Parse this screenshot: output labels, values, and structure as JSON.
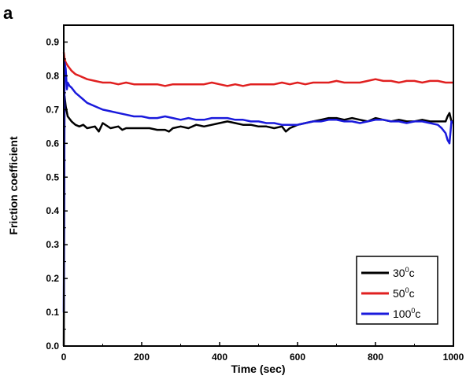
{
  "panel_label": "a",
  "chart_data": {
    "type": "line",
    "xlabel": "Time (sec)",
    "ylabel": "Friction coefficient",
    "xlim": [
      0,
      1000
    ],
    "ylim": [
      0.0,
      0.95
    ],
    "xticks": [
      "0",
      "200",
      "400",
      "600",
      "800",
      "1000"
    ],
    "xtick_values": [
      0,
      200,
      400,
      600,
      800,
      1000
    ],
    "yticks": [
      "0.0",
      "0.1",
      "0.2",
      "0.3",
      "0.4",
      "0.5",
      "0.6",
      "0.7",
      "0.8",
      "0.9"
    ],
    "ytick_values": [
      0.0,
      0.1,
      0.2,
      0.3,
      0.4,
      0.5,
      0.6,
      0.7,
      0.8,
      0.9
    ],
    "grid": false,
    "legend_position": "bottom-right",
    "series": [
      {
        "name": "30",
        "name_sup": "0",
        "name_suffix": "c",
        "color": "#000000",
        "x": [
          0,
          2,
          5,
          10,
          20,
          30,
          40,
          50,
          60,
          80,
          90,
          100,
          120,
          140,
          150,
          160,
          180,
          200,
          220,
          240,
          260,
          270,
          280,
          300,
          320,
          340,
          360,
          380,
          400,
          420,
          440,
          460,
          480,
          500,
          520,
          540,
          560,
          570,
          580,
          590,
          600,
          620,
          640,
          660,
          680,
          700,
          720,
          740,
          760,
          780,
          800,
          820,
          840,
          860,
          880,
          900,
          920,
          940,
          960,
          980,
          985,
          990,
          995,
          1000
        ],
        "y": [
          0.0,
          0.74,
          0.71,
          0.68,
          0.665,
          0.655,
          0.65,
          0.655,
          0.645,
          0.65,
          0.635,
          0.66,
          0.645,
          0.65,
          0.64,
          0.645,
          0.645,
          0.645,
          0.645,
          0.64,
          0.64,
          0.635,
          0.645,
          0.65,
          0.645,
          0.655,
          0.65,
          0.655,
          0.66,
          0.665,
          0.66,
          0.655,
          0.655,
          0.65,
          0.65,
          0.645,
          0.65,
          0.635,
          0.645,
          0.65,
          0.655,
          0.66,
          0.665,
          0.67,
          0.675,
          0.675,
          0.67,
          0.675,
          0.67,
          0.665,
          0.675,
          0.67,
          0.665,
          0.67,
          0.665,
          0.665,
          0.67,
          0.665,
          0.665,
          0.665,
          0.68,
          0.69,
          0.665,
          0.665
        ]
      },
      {
        "name": "50",
        "name_sup": "0",
        "name_suffix": "c",
        "color": "#e02020",
        "x": [
          0,
          2,
          5,
          10,
          20,
          30,
          40,
          60,
          80,
          100,
          120,
          140,
          160,
          180,
          200,
          220,
          240,
          260,
          280,
          300,
          320,
          340,
          360,
          380,
          400,
          420,
          440,
          460,
          480,
          500,
          520,
          540,
          560,
          580,
          600,
          620,
          640,
          660,
          680,
          700,
          720,
          740,
          760,
          780,
          800,
          820,
          840,
          860,
          880,
          900,
          920,
          940,
          960,
          980,
          1000
        ],
        "y": [
          0.87,
          0.85,
          0.84,
          0.83,
          0.815,
          0.805,
          0.8,
          0.79,
          0.785,
          0.78,
          0.78,
          0.775,
          0.78,
          0.775,
          0.775,
          0.775,
          0.775,
          0.77,
          0.775,
          0.775,
          0.775,
          0.775,
          0.775,
          0.78,
          0.775,
          0.77,
          0.775,
          0.77,
          0.775,
          0.775,
          0.775,
          0.775,
          0.78,
          0.775,
          0.78,
          0.775,
          0.78,
          0.78,
          0.78,
          0.785,
          0.78,
          0.78,
          0.78,
          0.785,
          0.79,
          0.785,
          0.785,
          0.78,
          0.785,
          0.785,
          0.78,
          0.785,
          0.785,
          0.78,
          0.78
        ]
      },
      {
        "name": "100",
        "name_sup": "0",
        "name_suffix": "c",
        "color": "#1a1adc",
        "x": [
          0,
          2,
          5,
          8,
          10,
          15,
          20,
          30,
          40,
          50,
          60,
          80,
          100,
          120,
          140,
          160,
          180,
          200,
          220,
          240,
          260,
          280,
          300,
          320,
          340,
          360,
          380,
          400,
          420,
          440,
          460,
          480,
          500,
          520,
          540,
          560,
          580,
          600,
          620,
          640,
          660,
          680,
          700,
          720,
          740,
          760,
          780,
          800,
          820,
          840,
          860,
          880,
          900,
          920,
          940,
          960,
          970,
          980,
          985,
          990,
          995,
          1000
        ],
        "y": [
          0.1,
          0.84,
          0.82,
          0.76,
          0.78,
          0.77,
          0.765,
          0.75,
          0.74,
          0.73,
          0.72,
          0.71,
          0.7,
          0.695,
          0.69,
          0.685,
          0.68,
          0.68,
          0.675,
          0.675,
          0.68,
          0.675,
          0.67,
          0.675,
          0.67,
          0.67,
          0.675,
          0.675,
          0.675,
          0.67,
          0.67,
          0.665,
          0.665,
          0.66,
          0.66,
          0.655,
          0.655,
          0.655,
          0.66,
          0.665,
          0.665,
          0.67,
          0.67,
          0.665,
          0.665,
          0.66,
          0.665,
          0.67,
          0.67,
          0.665,
          0.665,
          0.66,
          0.665,
          0.665,
          0.66,
          0.655,
          0.645,
          0.63,
          0.61,
          0.6,
          0.665,
          0.66
        ]
      }
    ]
  }
}
